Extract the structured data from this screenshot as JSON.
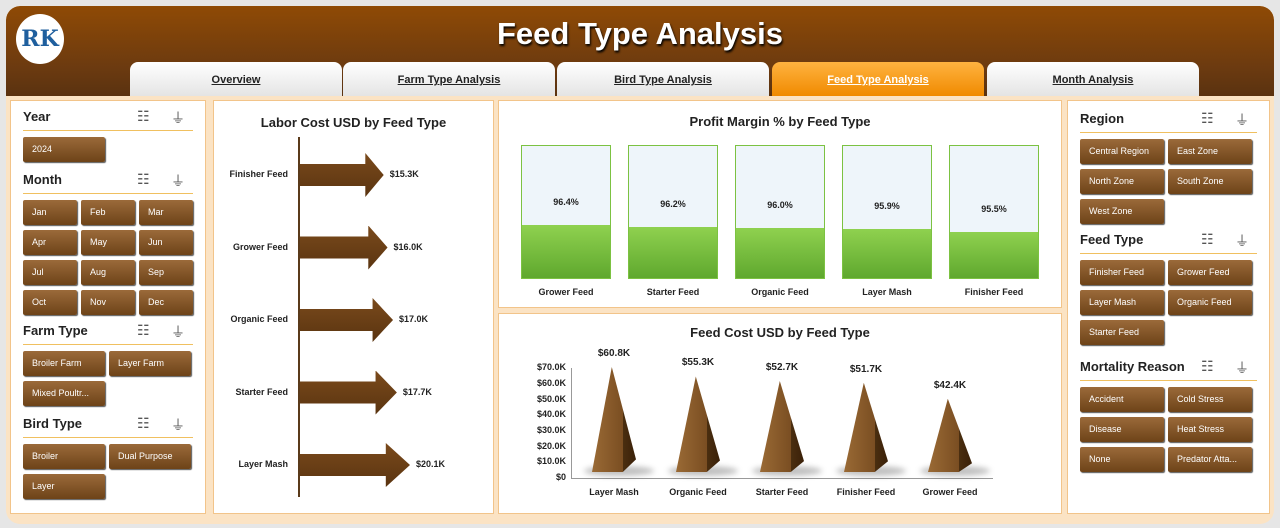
{
  "header": {
    "title": "Feed Type Analysis",
    "logo_text": "RK"
  },
  "tabs": [
    {
      "label": "Overview",
      "active": false
    },
    {
      "label": "Farm Type Analysis",
      "active": false
    },
    {
      "label": "Bird Type Analysis",
      "active": false
    },
    {
      "label": "Feed Type Analysis",
      "active": true
    },
    {
      "label": "Month Analysis",
      "active": false
    }
  ],
  "slicers_left": [
    {
      "title": "Year",
      "items": [
        "2024"
      ]
    },
    {
      "title": "Month",
      "items": [
        "Jan",
        "Feb",
        "Mar",
        "Apr",
        "May",
        "Jun",
        "Jul",
        "Aug",
        "Sep",
        "Oct",
        "Nov",
        "Dec"
      ]
    },
    {
      "title": "Farm Type",
      "items": [
        "Broiler Farm",
        "Layer Farm",
        "Mixed Poultr..."
      ]
    },
    {
      "title": "Bird Type",
      "items": [
        "Broiler",
        "Dual Purpose",
        "Layer"
      ]
    }
  ],
  "slicers_right": [
    {
      "title": "Region",
      "items": [
        "Central Region",
        "East Zone",
        "North Zone",
        "South Zone",
        "West Zone"
      ]
    },
    {
      "title": "Feed Type",
      "items": [
        "Finisher Feed",
        "Grower Feed",
        "Layer Mash",
        "Organic Feed",
        "Starter Feed"
      ]
    },
    {
      "title": "Mortality Reason",
      "items": [
        "Accident",
        "Cold Stress",
        "Disease",
        "Heat Stress",
        "None",
        "Predator Atta..."
      ]
    }
  ],
  "chart_data": [
    {
      "type": "bar",
      "title": "Labor Cost USD by Feed Type",
      "categories": [
        "Finisher Feed",
        "Grower Feed",
        "Organic Feed",
        "Starter Feed",
        "Layer Mash"
      ],
      "values": [
        15.3,
        16.0,
        17.0,
        17.7,
        20.1
      ],
      "labels": [
        "$15.3K",
        "$16.0K",
        "$17.0K",
        "$17.7K",
        "$20.1K"
      ],
      "unit": "K USD",
      "orientation": "horizontal"
    },
    {
      "type": "bar",
      "title": "Profit Margin % by Feed Type",
      "categories": [
        "Grower Feed",
        "Starter Feed",
        "Organic Feed",
        "Layer Mash",
        "Finisher Feed"
      ],
      "values": [
        96.4,
        96.2,
        96.0,
        95.9,
        95.5
      ],
      "labels": [
        "96.4%",
        "96.2%",
        "96.0%",
        "95.9%",
        "95.5%"
      ],
      "color": "#7cc242"
    },
    {
      "type": "bar",
      "title": "Feed Cost USD by Feed Type",
      "categories": [
        "Layer Mash",
        "Organic Feed",
        "Starter Feed",
        "Finisher Feed",
        "Grower Feed"
      ],
      "values": [
        60.8,
        55.3,
        52.7,
        51.7,
        42.4
      ],
      "labels": [
        "$60.8K",
        "$55.3K",
        "$52.7K",
        "$51.7K",
        "$42.4K"
      ],
      "ylim": [
        0,
        70
      ],
      "yticks": [
        "$0",
        "$10.0K",
        "$20.0K",
        "$30.0K",
        "$40.0K",
        "$50.0K",
        "$60.0K",
        "$70.0K"
      ]
    }
  ]
}
